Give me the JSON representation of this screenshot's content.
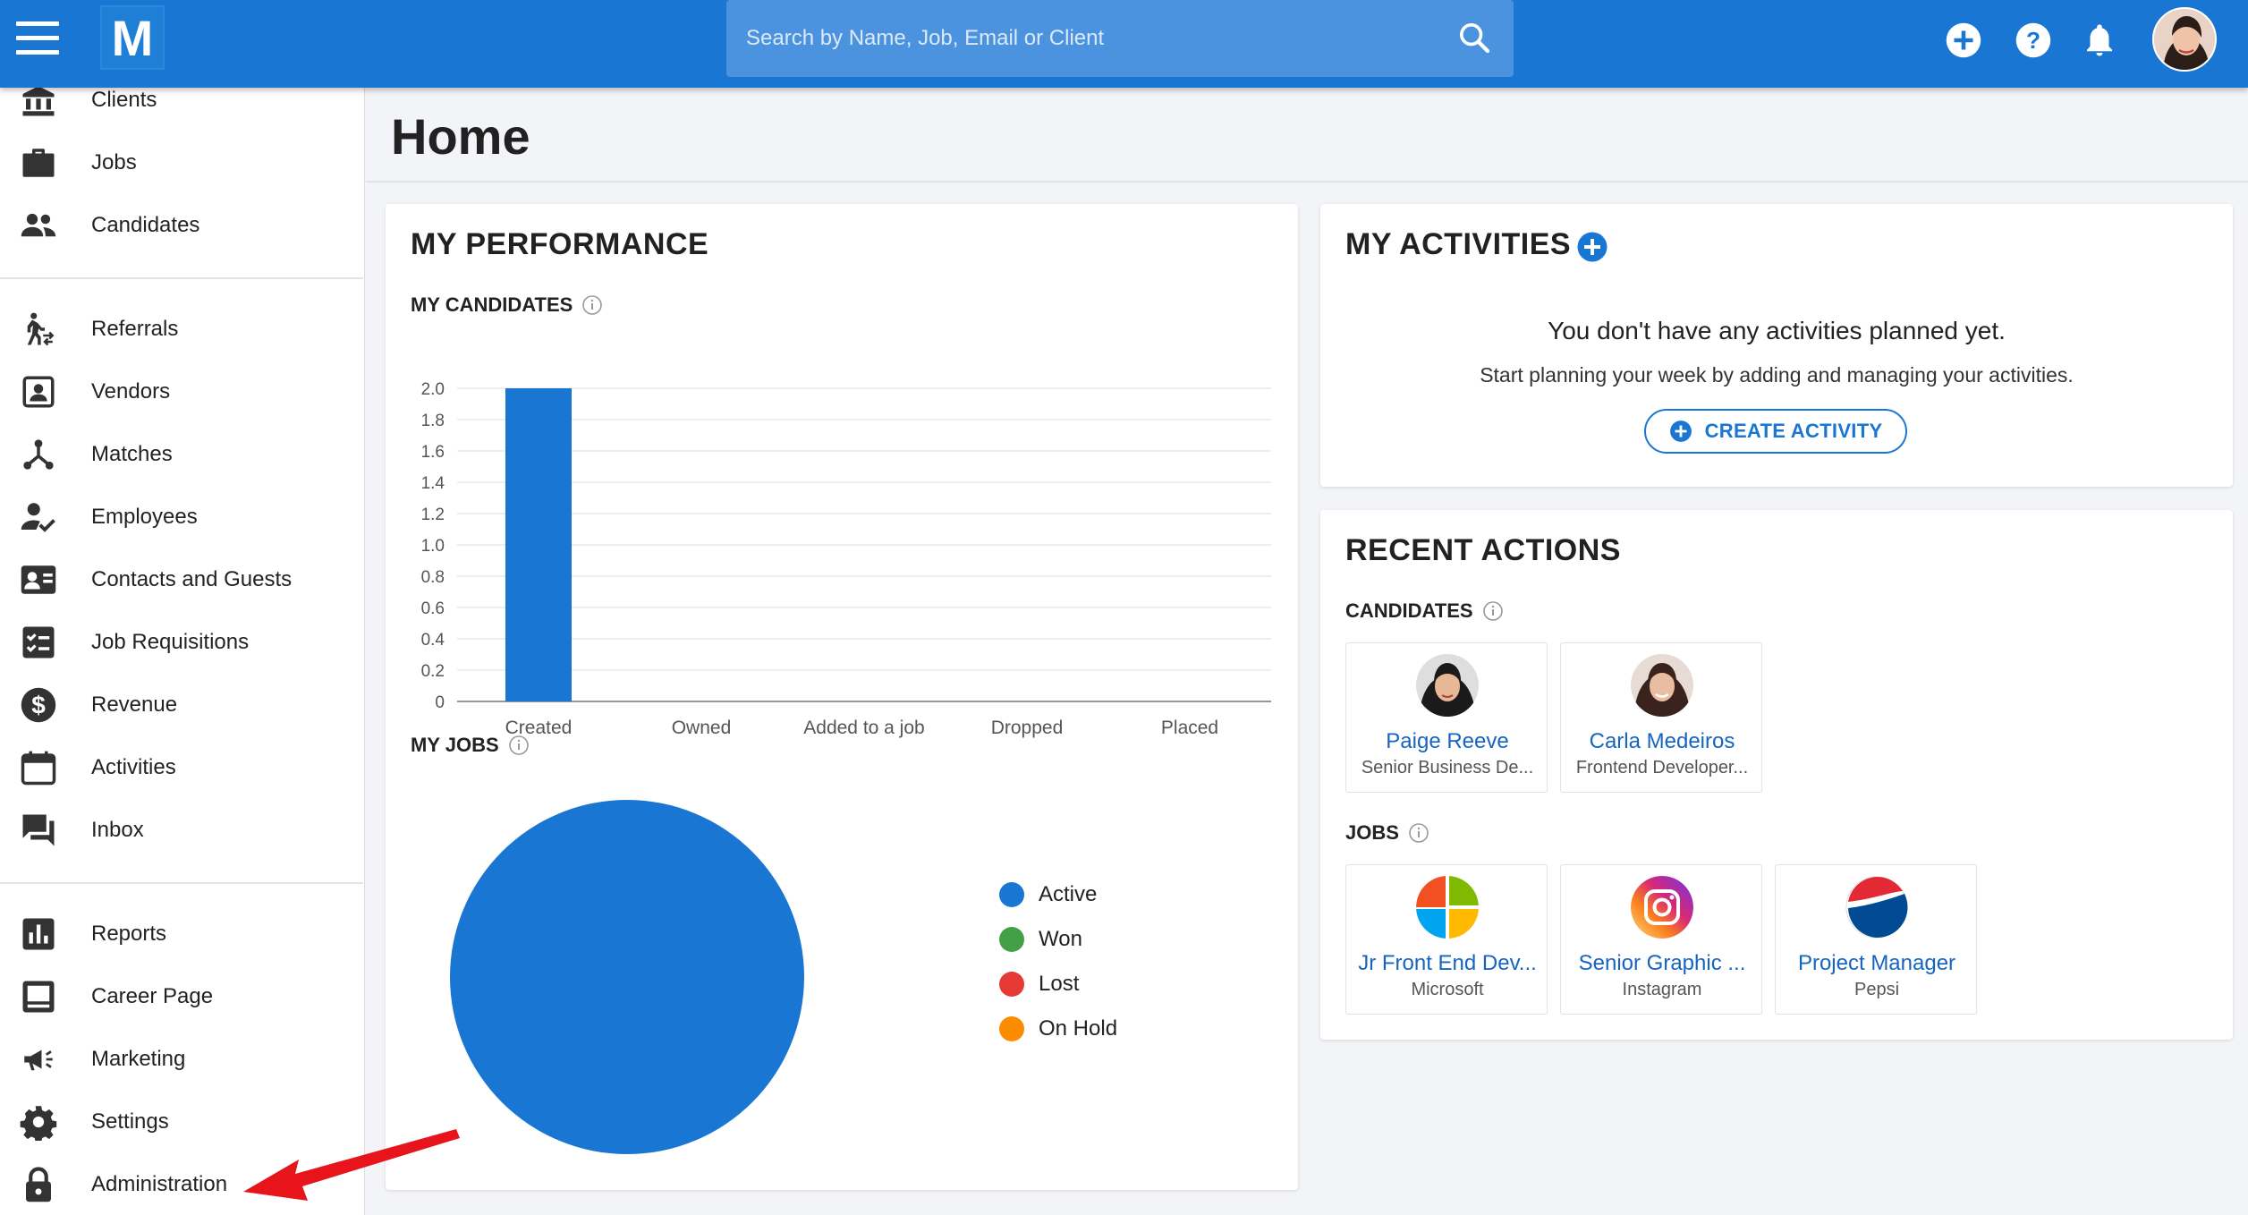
{
  "topbar": {
    "search_placeholder": "Search by Name, Job, Email or Client",
    "logo_letter": "M"
  },
  "sidebar": {
    "group1": [
      "Clients",
      "Jobs",
      "Candidates"
    ],
    "group2": [
      "Referrals",
      "Vendors",
      "Matches",
      "Employees",
      "Contacts and Guests",
      "Job Requisitions",
      "Revenue",
      "Activities",
      "Inbox"
    ],
    "group3": [
      "Reports",
      "Career Page",
      "Marketing",
      "Settings",
      "Administration"
    ]
  },
  "page": {
    "title": "Home"
  },
  "performance": {
    "title": "MY PERFORMANCE",
    "candidates_label": "MY CANDIDATES",
    "jobs_label": "MY JOBS"
  },
  "chart_data": [
    {
      "type": "bar",
      "title": "MY CANDIDATES",
      "categories": [
        "Created",
        "Owned",
        "Added to a job",
        "Dropped",
        "Placed"
      ],
      "values": [
        2,
        0,
        0,
        0,
        0
      ],
      "ylim": [
        0,
        2.0
      ],
      "yticks": [
        "0",
        "0.2",
        "0.4",
        "0.6",
        "0.8",
        "1.0",
        "1.2",
        "1.4",
        "1.6",
        "1.8",
        "2.0"
      ],
      "grid": true,
      "color": "#1976d2"
    },
    {
      "type": "pie",
      "title": "MY JOBS",
      "labels": [
        "Active",
        "Won",
        "Lost",
        "On Hold"
      ],
      "values": [
        1,
        0,
        0,
        0
      ],
      "colors": [
        "#1976d2",
        "#43a047",
        "#e53935",
        "#fb8c00"
      ],
      "legend": "right"
    }
  ],
  "activities": {
    "title": "MY ACTIVITIES",
    "empty_title": "You don't have any activities planned yet.",
    "empty_sub": "Start planning your week by adding and managing your activities.",
    "create_label": "CREATE ACTIVITY"
  },
  "recent": {
    "title": "RECENT ACTIONS",
    "candidates_label": "CANDIDATES",
    "jobs_label": "JOBS",
    "candidates": [
      {
        "name": "Paige Reeve",
        "role": "Senior Business De..."
      },
      {
        "name": "Carla Medeiros",
        "role": "Frontend Developer..."
      }
    ],
    "jobs": [
      {
        "name": "Jr Front End Dev...",
        "company": "Microsoft"
      },
      {
        "name": "Senior Graphic ...",
        "company": "Instagram"
      },
      {
        "name": "Project Manager",
        "company": "Pepsi"
      }
    ]
  },
  "colors": {
    "brand": "#1976d2",
    "annotation_arrow": "#e8141b"
  }
}
